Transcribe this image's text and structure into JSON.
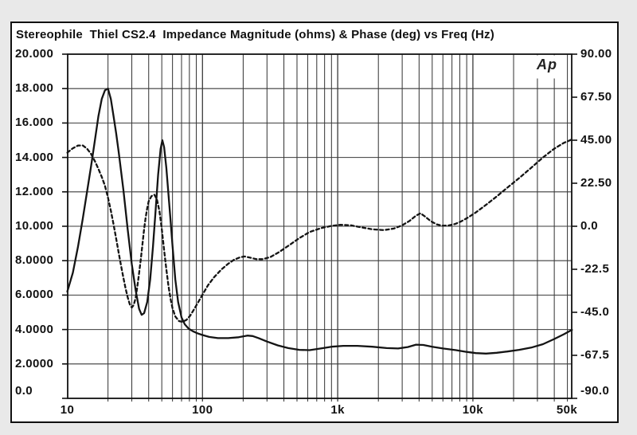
{
  "chart_data": {
    "type": "line",
    "title": "Stereophile  Thiel CS2.4  Impedance Magnitude (ohms) & Phase (deg) vs Freq (Hz)",
    "logo": "Ap",
    "grid": true,
    "x_axis": {
      "label": "Freq (Hz)",
      "scale": "log",
      "min": 10,
      "max": 53500,
      "tick_values": [
        10,
        100,
        1000,
        10000,
        50000
      ],
      "tick_labels": [
        "10",
        "100",
        "1k",
        "10k",
        "50k"
      ]
    },
    "y_axis_left": {
      "label": "Impedance Magnitude (ohms)",
      "min": 0,
      "max": 20,
      "tick_values": [
        20,
        18,
        16,
        14,
        12,
        10,
        8,
        6,
        4,
        2,
        0
      ],
      "tick_labels": [
        "20.000",
        "18.000",
        "16.000",
        "14.000",
        "12.000",
        "10.000",
        "8.0000",
        "6.0000",
        "4.0000",
        "2.0000",
        "0.0"
      ]
    },
    "y_axis_right": {
      "label": "Phase (deg)",
      "min": -90,
      "max": 90,
      "tick_values": [
        90,
        67.5,
        45,
        22.5,
        0,
        -22.5,
        -45,
        -67.5,
        -90
      ],
      "tick_labels": [
        "90.00",
        "67.50",
        "45.00",
        "22.50",
        "0.0",
        "-22.5",
        "-45.0",
        "-67.5",
        "-90.0"
      ]
    },
    "series": [
      {
        "name": "impedance-magnitude",
        "style": "solid",
        "axis": "left",
        "color": "#141414",
        "points": [
          [
            10,
            6.2
          ],
          [
            11,
            7.3
          ],
          [
            12,
            8.8
          ],
          [
            13,
            10.4
          ],
          [
            14,
            12.0
          ],
          [
            15,
            13.5
          ],
          [
            16,
            15.0
          ],
          [
            17,
            16.4
          ],
          [
            18,
            17.4
          ],
          [
            19,
            17.9
          ],
          [
            20,
            18.0
          ],
          [
            21,
            17.4
          ],
          [
            22,
            16.4
          ],
          [
            23,
            15.4
          ],
          [
            24,
            14.3
          ],
          [
            26,
            12.1
          ],
          [
            28,
            9.8
          ],
          [
            30,
            7.8
          ],
          [
            32,
            6.3
          ],
          [
            34,
            5.2
          ],
          [
            35.5,
            4.85
          ],
          [
            37,
            4.95
          ],
          [
            39,
            5.6
          ],
          [
            41,
            6.9
          ],
          [
            43,
            8.8
          ],
          [
            45,
            10.9
          ],
          [
            47,
            13.0
          ],
          [
            49,
            14.5
          ],
          [
            50.5,
            15.0
          ],
          [
            52,
            14.6
          ],
          [
            54,
            13.4
          ],
          [
            56,
            11.9
          ],
          [
            58,
            10.4
          ],
          [
            60,
            8.9
          ],
          [
            63,
            6.9
          ],
          [
            66,
            5.6
          ],
          [
            70,
            4.7
          ],
          [
            74,
            4.3
          ],
          [
            79,
            4.05
          ],
          [
            85,
            3.9
          ],
          [
            92,
            3.78
          ],
          [
            100,
            3.68
          ],
          [
            112,
            3.57
          ],
          [
            130,
            3.5
          ],
          [
            155,
            3.5
          ],
          [
            185,
            3.55
          ],
          [
            215,
            3.65
          ],
          [
            235,
            3.62
          ],
          [
            260,
            3.5
          ],
          [
            300,
            3.3
          ],
          [
            360,
            3.08
          ],
          [
            430,
            2.92
          ],
          [
            520,
            2.82
          ],
          [
            620,
            2.8
          ],
          [
            750,
            2.9
          ],
          [
            900,
            3.0
          ],
          [
            1100,
            3.05
          ],
          [
            1400,
            3.05
          ],
          [
            1800,
            3.0
          ],
          [
            2300,
            2.92
          ],
          [
            2800,
            2.9
          ],
          [
            3300,
            2.98
          ],
          [
            3800,
            3.12
          ],
          [
            4300,
            3.1
          ],
          [
            5000,
            3.0
          ],
          [
            6000,
            2.9
          ],
          [
            7500,
            2.8
          ],
          [
            9000,
            2.7
          ],
          [
            10500,
            2.63
          ],
          [
            12500,
            2.6
          ],
          [
            15000,
            2.65
          ],
          [
            18000,
            2.72
          ],
          [
            22000,
            2.82
          ],
          [
            27000,
            2.95
          ],
          [
            33000,
            3.15
          ],
          [
            40000,
            3.45
          ],
          [
            47000,
            3.72
          ],
          [
            54000,
            3.98
          ]
        ]
      },
      {
        "name": "phase",
        "style": "dashed",
        "axis": "right",
        "color": "#141414",
        "points": [
          [
            10,
            38.5
          ],
          [
            11,
            40.8
          ],
          [
            12,
            42.2
          ],
          [
            13,
            42.3
          ],
          [
            14,
            40.6
          ],
          [
            15,
            37.8
          ],
          [
            16,
            34.0
          ],
          [
            17,
            30.0
          ],
          [
            18,
            25.8
          ],
          [
            19,
            21.2
          ],
          [
            20,
            15.0
          ],
          [
            21,
            8.2
          ],
          [
            22,
            1.0
          ],
          [
            23,
            -6.5
          ],
          [
            24,
            -14.0
          ],
          [
            25,
            -20.8
          ],
          [
            26,
            -27.0
          ],
          [
            27,
            -32.5
          ],
          [
            28,
            -37.2
          ],
          [
            29,
            -40.8
          ],
          [
            30,
            -42.5
          ],
          [
            31,
            -41.2
          ],
          [
            32,
            -37.6
          ],
          [
            33,
            -31.5
          ],
          [
            34,
            -24.5
          ],
          [
            35,
            -17.0
          ],
          [
            36,
            -9.0
          ],
          [
            37,
            -1.5
          ],
          [
            38,
            4.5
          ],
          [
            39,
            9.5
          ],
          [
            40,
            13.0
          ],
          [
            42,
            15.8
          ],
          [
            44,
            16.5
          ],
          [
            46,
            14.2
          ],
          [
            48,
            8.0
          ],
          [
            50,
            -1.5
          ],
          [
            52,
            -12.5
          ],
          [
            54,
            -22.5
          ],
          [
            56,
            -31.0
          ],
          [
            58,
            -37.8
          ],
          [
            60,
            -42.8
          ],
          [
            63,
            -47.2
          ],
          [
            67,
            -49.6
          ],
          [
            71,
            -50.0
          ],
          [
            76,
            -49.0
          ],
          [
            81,
            -46.8
          ],
          [
            86,
            -43.8
          ],
          [
            92,
            -40.2
          ],
          [
            100,
            -35.8
          ],
          [
            110,
            -30.8
          ],
          [
            122,
            -26.6
          ],
          [
            138,
            -22.6
          ],
          [
            155,
            -19.6
          ],
          [
            172,
            -17.4
          ],
          [
            190,
            -16.2
          ],
          [
            205,
            -15.8
          ],
          [
            225,
            -16.4
          ],
          [
            250,
            -17.2
          ],
          [
            280,
            -17.2
          ],
          [
            320,
            -16.0
          ],
          [
            370,
            -13.4
          ],
          [
            440,
            -9.8
          ],
          [
            520,
            -6.2
          ],
          [
            620,
            -3.0
          ],
          [
            750,
            -1.0
          ],
          [
            900,
            0.2
          ],
          [
            1050,
            0.8
          ],
          [
            1250,
            0.5
          ],
          [
            1500,
            -0.6
          ],
          [
            1800,
            -1.6
          ],
          [
            2200,
            -2.0
          ],
          [
            2600,
            -1.2
          ],
          [
            3000,
            0.5
          ],
          [
            3400,
            2.8
          ],
          [
            3800,
            5.6
          ],
          [
            4100,
            6.8
          ],
          [
            4400,
            5.2
          ],
          [
            4900,
            2.6
          ],
          [
            5400,
            1.0
          ],
          [
            5900,
            0.3
          ],
          [
            6600,
            0.4
          ],
          [
            7400,
            1.2
          ],
          [
            8200,
            2.6
          ],
          [
            9200,
            4.6
          ],
          [
            10500,
            7.2
          ],
          [
            12500,
            11.2
          ],
          [
            15000,
            15.6
          ],
          [
            18000,
            20.2
          ],
          [
            22000,
            25.2
          ],
          [
            27000,
            30.6
          ],
          [
            33000,
            36.0
          ],
          [
            40000,
            40.6
          ],
          [
            47000,
            43.6
          ],
          [
            54000,
            45.4
          ]
        ]
      }
    ]
  }
}
